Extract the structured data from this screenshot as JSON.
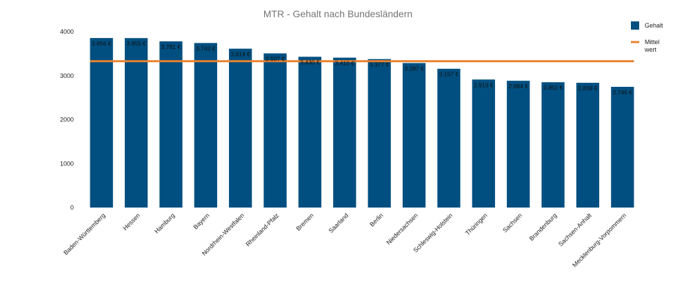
{
  "chart_data": {
    "type": "bar",
    "title": "MTR - Gehalt nach Bundesländern",
    "xlabel": "",
    "ylabel": "",
    "ylim": [
      0,
      4000
    ],
    "yticks": [
      0,
      1000,
      2000,
      3000,
      4000
    ],
    "grid": false,
    "legend_position": "top-right",
    "categories": [
      "Baden-Württemberg",
      "Hessen",
      "Hamburg",
      "Bayern",
      "Nordrhein-Westfalen",
      "Rheinland-Pfalz",
      "Bremen",
      "Saarland",
      "Berlin",
      "Niedersachsen",
      "Schleswig-Holstein",
      "Thüringen",
      "Sachsen",
      "Brandenburg",
      "Sachsen-Anhalt",
      "Mecklenburg-Vorpommern"
    ],
    "series": [
      {
        "name": "Gehalt",
        "type": "bar",
        "color": "#004f80",
        "values": [
          3856,
          3855,
          3781,
          3743,
          3614,
          3507,
          3430,
          3410,
          3377,
          3287,
          3157,
          2913,
          2884,
          2851,
          2838,
          2746
        ],
        "labels": [
          "3.856 €",
          "3.855 €",
          "3.781 €",
          "3.743 €",
          "3.614 €",
          "3.507 €",
          "3.430 €",
          "3.410 €",
          "3.377 €",
          "3.287 €",
          "3.157 €",
          "2.913 €",
          "2.884 €",
          "2.851 €",
          "2.838 €",
          "2.746 €"
        ]
      },
      {
        "name": "Mittel wert",
        "legend_lines": [
          "Mittel",
          "wert"
        ],
        "type": "line",
        "color": "#e8822f",
        "value": 3330
      }
    ]
  }
}
